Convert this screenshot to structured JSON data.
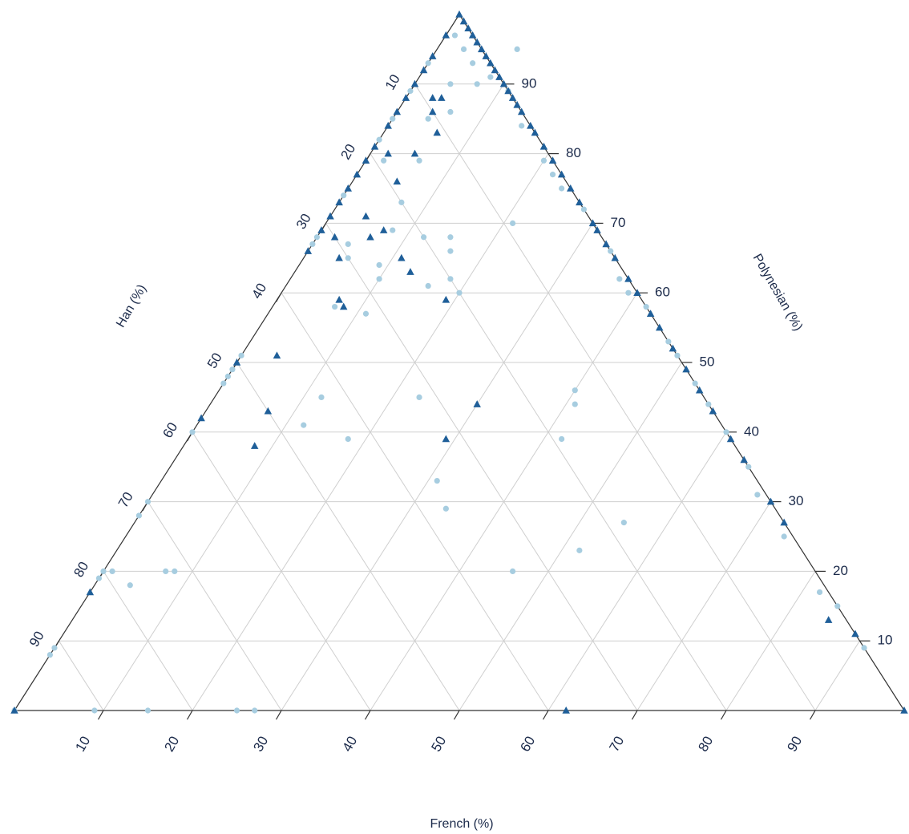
{
  "chart_data": {
    "type": "scatter",
    "subtype": "ternary",
    "title": "",
    "axes": {
      "french": {
        "label": "French (%)",
        "range": [
          0,
          100
        ],
        "ticks": [
          10,
          20,
          30,
          40,
          50,
          60,
          70,
          80,
          90
        ]
      },
      "polynesian": {
        "label": "Polynesian (%)",
        "range": [
          0,
          100
        ],
        "ticks": [
          10,
          20,
          30,
          40,
          50,
          60,
          70,
          80,
          90
        ]
      },
      "han": {
        "label": "Han (%)",
        "range": [
          0,
          100
        ],
        "ticks": [
          10,
          20,
          30,
          40,
          50,
          60,
          70,
          80,
          90
        ]
      }
    },
    "grid": true,
    "grid_step": 10,
    "legend": "none",
    "point_format": "[french, polynesian] in percent; han = 100 - french - polynesian",
    "series": [
      {
        "marker": "triangle",
        "color": "#1f5f99",
        "points": [
          [
            0,
            100
          ],
          [
            1,
            99
          ],
          [
            2,
            98
          ],
          [
            3,
            97
          ],
          [
            4,
            96
          ],
          [
            5,
            95
          ],
          [
            6,
            94
          ],
          [
            7,
            93
          ],
          [
            8,
            92
          ],
          [
            9,
            91
          ],
          [
            10,
            90
          ],
          [
            11,
            89
          ],
          [
            12,
            88
          ],
          [
            13,
            87
          ],
          [
            14,
            86
          ],
          [
            16,
            84
          ],
          [
            17,
            83
          ],
          [
            19,
            81
          ],
          [
            21,
            79
          ],
          [
            23,
            77
          ],
          [
            25,
            75
          ],
          [
            27,
            73
          ],
          [
            30,
            70
          ],
          [
            31,
            69
          ],
          [
            33,
            67
          ],
          [
            35,
            65
          ],
          [
            38,
            62
          ],
          [
            40,
            60
          ],
          [
            43,
            57
          ],
          [
            45,
            55
          ],
          [
            48,
            52
          ],
          [
            51,
            49
          ],
          [
            54,
            46
          ],
          [
            57,
            43
          ],
          [
            61,
            39
          ],
          [
            64,
            36
          ],
          [
            70,
            30
          ],
          [
            73,
            27
          ],
          [
            85,
            13
          ],
          [
            89,
            11
          ],
          [
            100,
            0
          ],
          [
            0,
            97
          ],
          [
            0,
            94
          ],
          [
            0,
            92
          ],
          [
            0,
            90
          ],
          [
            0,
            88
          ],
          [
            0,
            86
          ],
          [
            0,
            84
          ],
          [
            0,
            81
          ],
          [
            0,
            79
          ],
          [
            0,
            77
          ],
          [
            0,
            75
          ],
          [
            0,
            73
          ],
          [
            0,
            71
          ],
          [
            0,
            69
          ],
          [
            0,
            66
          ],
          [
            0,
            50
          ],
          [
            0,
            42
          ],
          [
            0,
            17
          ],
          [
            0,
            0
          ],
          [
            3,
            88
          ],
          [
            4,
            88
          ],
          [
            4,
            86
          ],
          [
            6,
            83
          ],
          [
            2,
            80
          ],
          [
            5,
            80
          ],
          [
            5,
            76
          ],
          [
            4,
            71
          ],
          [
            7,
            69
          ],
          [
            6,
            68
          ],
          [
            2,
            68
          ],
          [
            4,
            65
          ],
          [
            11,
            65
          ],
          [
            13,
            63
          ],
          [
            8,
            58
          ],
          [
            7,
            59
          ],
          [
            19,
            59
          ],
          [
            4,
            51
          ],
          [
            7,
            43
          ],
          [
            8,
            38
          ],
          [
            29,
            39
          ],
          [
            30,
            44
          ],
          [
            62,
            0
          ]
        ]
      },
      {
        "marker": "circle",
        "color": "#a7cde0",
        "points": [
          [
            1,
            97
          ],
          [
            3,
            95
          ],
          [
            5,
            93
          ],
          [
            8,
            91
          ],
          [
            11,
            89
          ],
          [
            15,
            84
          ],
          [
            20,
            79
          ],
          [
            22,
            77
          ],
          [
            24,
            75
          ],
          [
            28,
            72
          ],
          [
            34,
            66
          ],
          [
            37,
            62
          ],
          [
            39,
            60
          ],
          [
            42,
            58
          ],
          [
            47,
            53
          ],
          [
            49,
            51
          ],
          [
            53,
            47
          ],
          [
            56,
            44
          ],
          [
            60,
            40
          ],
          [
            65,
            35
          ],
          [
            68,
            31
          ],
          [
            74,
            25
          ],
          [
            82,
            17
          ],
          [
            85,
            15
          ],
          [
            91,
            9
          ],
          [
            0,
            93
          ],
          [
            0,
            89
          ],
          [
            0,
            85
          ],
          [
            0,
            82
          ],
          [
            0,
            74
          ],
          [
            0,
            68
          ],
          [
            0,
            67
          ],
          [
            0,
            51
          ],
          [
            0,
            49
          ],
          [
            0,
            48
          ],
          [
            0,
            47
          ],
          [
            0,
            40
          ],
          [
            0,
            30
          ],
          [
            0,
            28
          ],
          [
            0,
            20
          ],
          [
            0,
            19
          ],
          [
            0,
            9
          ],
          [
            0,
            8
          ],
          [
            0,
            0
          ],
          [
            9,
            95
          ],
          [
            4,
            90
          ],
          [
            7,
            90
          ],
          [
            6,
            86
          ],
          [
            4,
            85
          ],
          [
            6,
            79
          ],
          [
            2,
            79
          ],
          [
            7,
            73
          ],
          [
            8,
            69
          ],
          [
            12,
            68
          ],
          [
            15,
            68
          ],
          [
            9,
            64
          ],
          [
            20,
            60
          ],
          [
            7,
            58
          ],
          [
            11,
            57
          ],
          [
            12,
            45
          ],
          [
            12,
            41
          ],
          [
            18,
            39
          ],
          [
            23,
            45
          ],
          [
            31,
            33
          ],
          [
            34,
            29
          ],
          [
            41,
            44
          ],
          [
            40,
            46
          ],
          [
            42,
            39
          ],
          [
            7,
            20
          ],
          [
            8,
            20
          ],
          [
            1,
            20
          ],
          [
            4,
            18
          ],
          [
            25,
            0
          ],
          [
            27,
            0
          ],
          [
            9,
            0
          ],
          [
            15,
            0
          ],
          [
            4,
            67
          ],
          [
            5,
            65
          ],
          [
            21,
            70
          ],
          [
            16,
            66
          ],
          [
            10,
            62
          ],
          [
            16,
            61
          ],
          [
            18,
            62
          ],
          [
            46,
            20
          ],
          [
            52,
            23
          ],
          [
            55,
            27
          ]
        ]
      }
    ]
  }
}
